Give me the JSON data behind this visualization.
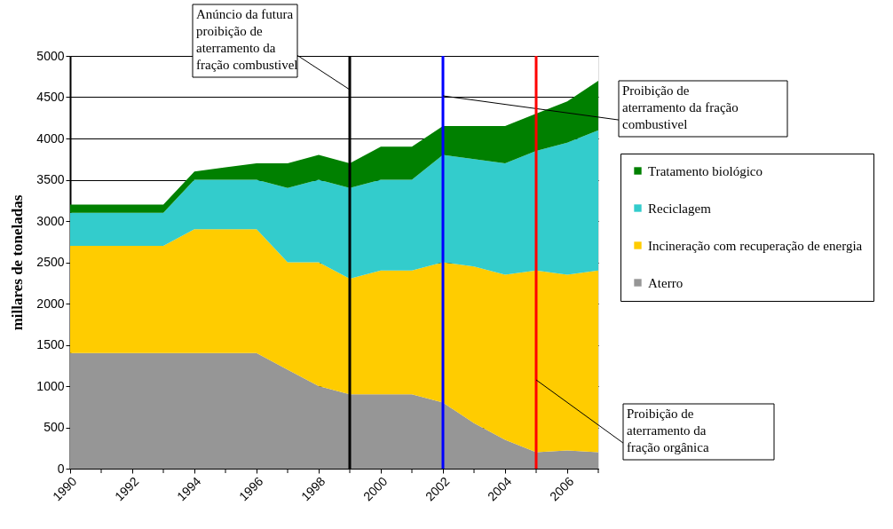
{
  "chart_data": {
    "type": "area",
    "stacked": true,
    "ylabel": "millares de toneladas",
    "x": [
      1990,
      1991,
      1992,
      1993,
      1994,
      1995,
      1996,
      1997,
      1998,
      1999,
      2000,
      2001,
      2002,
      2003,
      2004,
      2005,
      2006,
      2007
    ],
    "series": [
      {
        "name": "Aterro",
        "color": "#969696",
        "values": [
          1400,
          1400,
          1400,
          1400,
          1400,
          1400,
          1400,
          1200,
          1000,
          900,
          900,
          900,
          800,
          550,
          350,
          200,
          220,
          200
        ]
      },
      {
        "name": "Incineração com recuperação de energia",
        "color": "#ffcc00",
        "values": [
          1300,
          1300,
          1300,
          1300,
          1500,
          1500,
          1500,
          1300,
          1500,
          1400,
          1500,
          1500,
          1700,
          1900,
          2000,
          2200,
          2130,
          2200
        ]
      },
      {
        "name": "Reciclagem",
        "color": "#33cccc",
        "values": [
          400,
          400,
          400,
          400,
          600,
          600,
          600,
          900,
          1000,
          1100,
          1100,
          1100,
          1300,
          1300,
          1350,
          1450,
          1600,
          1700
        ]
      },
      {
        "name": "Tratamento biológico",
        "color": "#008000",
        "values": [
          100,
          100,
          100,
          100,
          100,
          150,
          200,
          300,
          300,
          300,
          400,
          400,
          350,
          400,
          450,
          450,
          500,
          600
        ]
      }
    ],
    "xlim": [
      1990,
      2007
    ],
    "xticks": [
      1990,
      {
        "value": 1991,
        "label": null
      },
      1992,
      {
        "value": 1993,
        "label": null
      },
      1994,
      {
        "value": 1995,
        "label": null
      },
      1996,
      {
        "value": 1997,
        "label": null
      },
      1998,
      {
        "value": 1999,
        "label": null
      },
      2000,
      {
        "value": 2001,
        "label": null
      },
      2002,
      {
        "value": 2003,
        "label": null
      },
      2004,
      {
        "value": 2005,
        "label": null
      },
      2006,
      {
        "value": 2007,
        "label": null
      }
    ],
    "ylim": [
      0,
      5000
    ],
    "yticks": [
      0,
      500,
      1000,
      1500,
      2000,
      2500,
      3000,
      3500,
      4000,
      4500,
      5000
    ],
    "grid": "y",
    "legend": "right",
    "ref_lines": [
      {
        "axis": "x",
        "value": 1999,
        "label": "Anúncio da futura proibição de aterramento da fração combustivel",
        "color": "#000000"
      },
      {
        "axis": "x",
        "value": 2002,
        "label": "Proibição de aterramento da fração combustivel",
        "color": "#0000ff"
      },
      {
        "axis": "x",
        "value": 2005,
        "label": "Proibição de aterramento da fração orgânica",
        "color": "#ff0000"
      }
    ]
  }
}
